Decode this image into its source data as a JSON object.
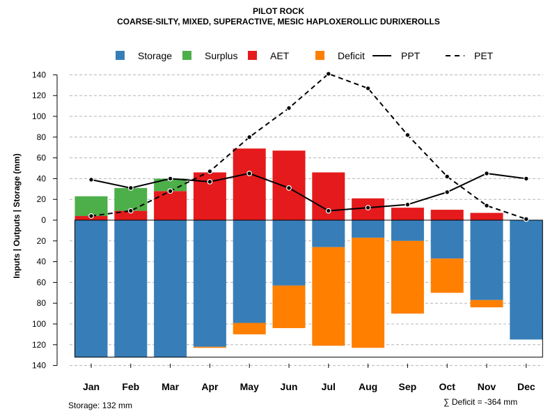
{
  "chart_data": {
    "type": "bar",
    "title": "PILOT ROCK",
    "subtitle": "COARSE-SILTY, MIXED, SUPERACTIVE, MESIC HAPLOXEROLLIC DURIXEROLLS",
    "ylabel": "Inputs | Outputs | Storage    (mm)",
    "xlabel": "",
    "categories": [
      "Jan",
      "Feb",
      "Mar",
      "Apr",
      "May",
      "Jun",
      "Jul",
      "Aug",
      "Sep",
      "Oct",
      "Nov",
      "Dec"
    ],
    "ylim": [
      -140,
      140
    ],
    "yticks": [
      140,
      120,
      100,
      80,
      60,
      40,
      20,
      0,
      -20,
      -40,
      -60,
      -80,
      -100,
      -120,
      -140
    ],
    "ytick_labels": [
      "140",
      "120",
      "100",
      "80",
      "60",
      "40",
      "20",
      "0",
      "20",
      "40",
      "60",
      "80",
      "100",
      "120",
      "140"
    ],
    "grid": true,
    "legend_position": "top",
    "legend": [
      {
        "name": "Storage",
        "kind": "box",
        "color": "#377EB8"
      },
      {
        "name": "Surplus",
        "kind": "box",
        "color": "#4DAF4A"
      },
      {
        "name": "AET",
        "kind": "box",
        "color": "#E41A1C"
      },
      {
        "name": "Deficit",
        "kind": "box",
        "color": "#FF7F00"
      },
      {
        "name": "PPT",
        "kind": "solid-line",
        "color": "#000000"
      },
      {
        "name": "PET",
        "kind": "dashed-line",
        "color": "#000000"
      }
    ],
    "series": [
      {
        "name": "AET",
        "color": "#E41A1C",
        "values": [
          4,
          9,
          28,
          46,
          69,
          67,
          46,
          21,
          12,
          10,
          7,
          0
        ]
      },
      {
        "name": "Surplus",
        "color": "#4DAF4A",
        "values": [
          19,
          22,
          12,
          0,
          0,
          0,
          0,
          0,
          0,
          0,
          0,
          0
        ]
      },
      {
        "name": "Storage",
        "color": "#377EB8",
        "values": [
          132,
          132,
          132,
          122,
          99,
          63,
          26,
          17,
          20,
          37,
          77,
          115
        ]
      },
      {
        "name": "Deficit",
        "color": "#FF7F00",
        "values": [
          0,
          0,
          0,
          1,
          11,
          41,
          95,
          106,
          70,
          33,
          7,
          0
        ]
      },
      {
        "name": "PPT",
        "color": "#000000",
        "values": [
          39,
          31,
          40,
          37,
          45,
          31,
          9,
          12,
          15,
          27,
          45,
          40
        ]
      },
      {
        "name": "PET",
        "color": "#000000",
        "values": [
          4,
          9,
          28,
          47,
          80,
          108,
          141,
          127,
          82,
          42,
          14,
          1
        ]
      }
    ],
    "annotations": {
      "storage": "Storage: 132 mm",
      "deficit": "∑ Deficit = -364 mm"
    }
  }
}
